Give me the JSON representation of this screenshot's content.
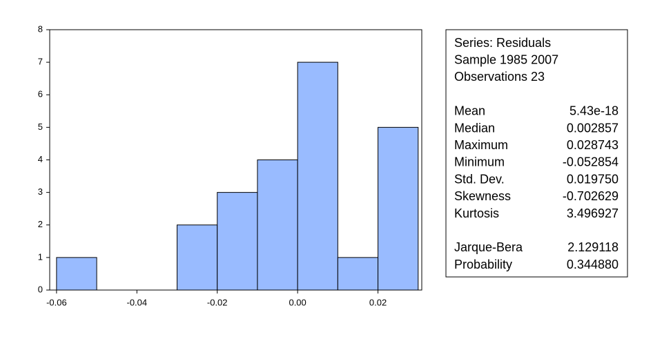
{
  "chart_data": {
    "type": "histogram",
    "bins": [
      -0.06,
      -0.05,
      -0.04,
      -0.03,
      -0.02,
      -0.01,
      0.0,
      0.01,
      0.02,
      0.03
    ],
    "counts": [
      1,
      0,
      0,
      2,
      3,
      4,
      7,
      1,
      5
    ],
    "color": "#99bbff",
    "xlim": [
      -0.0617,
      0.0309
    ],
    "xticks": [
      -0.06,
      -0.04,
      -0.02,
      {
        "value": 0,
        "label": "0.00"
      },
      0.02
    ],
    "ylim": [
      0,
      8
    ],
    "yticks": [
      0,
      1,
      2,
      3,
      4,
      5,
      6,
      7,
      8
    ]
  },
  "stats_box": {
    "header": [
      "Series: Residuals",
      "Sample 1985 2007",
      "Observations 23"
    ],
    "stats": [
      {
        "label": "Mean",
        "value": "5.43e-18"
      },
      {
        "label": "Median",
        "value": "0.002857"
      },
      {
        "label": "Maximum",
        "value": "0.028743"
      },
      {
        "label": "Minimum",
        "value": "-0.052854"
      },
      {
        "label": "Std. Dev.",
        "value": "0.019750"
      },
      {
        "label": "Skewness",
        "value": "-0.702629"
      },
      {
        "label": "Kurtosis",
        "value": "3.496927"
      }
    ],
    "tests": [
      {
        "label": "Jarque-Bera",
        "value": "2.129118"
      },
      {
        "label": "Probability",
        "value": "0.344880"
      }
    ]
  }
}
